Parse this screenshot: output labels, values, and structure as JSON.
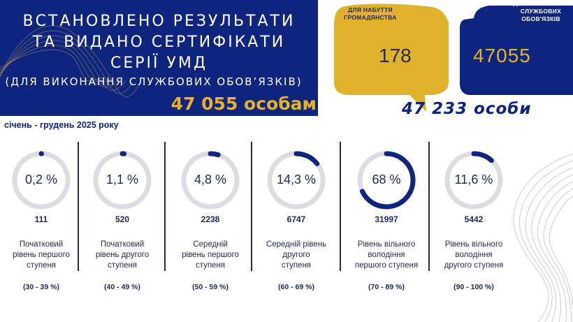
{
  "header": {
    "title_lines": [
      "ВСТАНОВЛЕНО РЕЗУЛЬТАТИ",
      "ТА ВИДАНО СЕРТИФІКАТИ",
      "СЕРІЇ  УМД"
    ],
    "subtitle": "(ДЛЯ ВИКОНАННЯ СЛУЖБОВИХ ОБОВ’ЯЗКІВ)",
    "total": "47 055 особам"
  },
  "bubbles": {
    "citizenship": {
      "label_lines": [
        "ДЛЯ НАБУТТЯ",
        "ГРОМАДЯНСТВА"
      ],
      "value": "178",
      "color": "#e2b12b"
    },
    "service": {
      "label_lines": [
        "ДЛЯ ВИКОНАННЯ",
        "СЛУЖБОВИХ",
        "ОБОВ'ЯЗКІВ"
      ],
      "value": "47055",
      "color": "#0e2580"
    },
    "total": "47 233 особи"
  },
  "period": "січень - грудень 2025 року",
  "colors": {
    "navy": "#0e2580",
    "gold": "#e7b12a",
    "track": "#dcdde3"
  },
  "chart_data": {
    "type": "pie",
    "series": [
      {
        "percent": 0.2,
        "percent_label": "0,2 %",
        "count": "111",
        "desc_lines": [
          "Початковий",
          "рівень першого",
          "ступеня"
        ],
        "range": "(30 - 39 %)"
      },
      {
        "percent": 1.1,
        "percent_label": "1,1 %",
        "count": "520",
        "desc_lines": [
          "Початковий",
          "рівень другого",
          "ступеня"
        ],
        "range": "(40 - 49 %)"
      },
      {
        "percent": 4.8,
        "percent_label": "4,8 %",
        "count": "2238",
        "desc_lines": [
          "Середній",
          "рівень першого",
          "ступеня"
        ],
        "range": "(50 - 59 %)"
      },
      {
        "percent": 14.3,
        "percent_label": "14,3 %",
        "count": "6747",
        "desc_lines": [
          "Середній рівень",
          "другого",
          "ступеня"
        ],
        "range": "(60 - 69 %)"
      },
      {
        "percent": 68,
        "percent_label": "68 %",
        "count": "31997",
        "desc_lines": [
          "Рівень вільного",
          "володіння",
          "першого ступеня"
        ],
        "range": "(70 - 89 %)"
      },
      {
        "percent": 11.6,
        "percent_label": "11,6 %",
        "count": "5442",
        "desc_lines": [
          "Рівень вільного",
          "володіння",
          "другого ступеня"
        ],
        "range": "(90 - 100 %)"
      }
    ]
  }
}
